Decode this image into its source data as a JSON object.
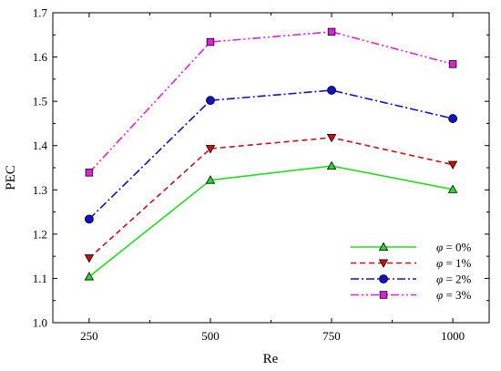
{
  "chart_data": {
    "type": "line",
    "xlabel": "Re",
    "ylabel": "PEC",
    "x": [
      250,
      500,
      750,
      1000
    ],
    "x_tick_labels": [
      "250",
      "500",
      "750",
      "1000"
    ],
    "xlim": [
      175,
      1075
    ],
    "ylim": [
      1.0,
      1.7
    ],
    "y_ticks": [
      1.0,
      1.1,
      1.2,
      1.3,
      1.4,
      1.5,
      1.6,
      1.7
    ],
    "y_tick_labels": [
      "1.0",
      "1.1",
      "1.2",
      "1.3",
      "1.4",
      "1.5",
      "1.6",
      "1.7"
    ],
    "grid": false,
    "legend_position": "bottom-right",
    "series": [
      {
        "name": "φ = 0%",
        "legend_prefix": "φ",
        "legend_suffix": " = 0%",
        "values": [
          1.104,
          1.322,
          1.354,
          1.301
        ],
        "color": "#22dd22",
        "marker": "triangle-up",
        "dash": "solid"
      },
      {
        "name": "φ = 1%",
        "legend_prefix": "φ",
        "legend_suffix": " = 1%",
        "values": [
          1.146,
          1.393,
          1.418,
          1.357
        ],
        "color": "#cc1111",
        "marker": "triangle-down",
        "dash": "dash"
      },
      {
        "name": "φ = 2%",
        "legend_prefix": "φ",
        "legend_suffix": " = 2%",
        "values": [
          1.234,
          1.502,
          1.525,
          1.461
        ],
        "color": "#1111cc",
        "marker": "circle",
        "dash": "dashdot"
      },
      {
        "name": "φ = 3%",
        "legend_prefix": "φ",
        "legend_suffix": " = 3%",
        "values": [
          1.339,
          1.634,
          1.657,
          1.584
        ],
        "color": "#dd22dd",
        "marker": "square",
        "dash": "dashdotdot"
      }
    ]
  }
}
